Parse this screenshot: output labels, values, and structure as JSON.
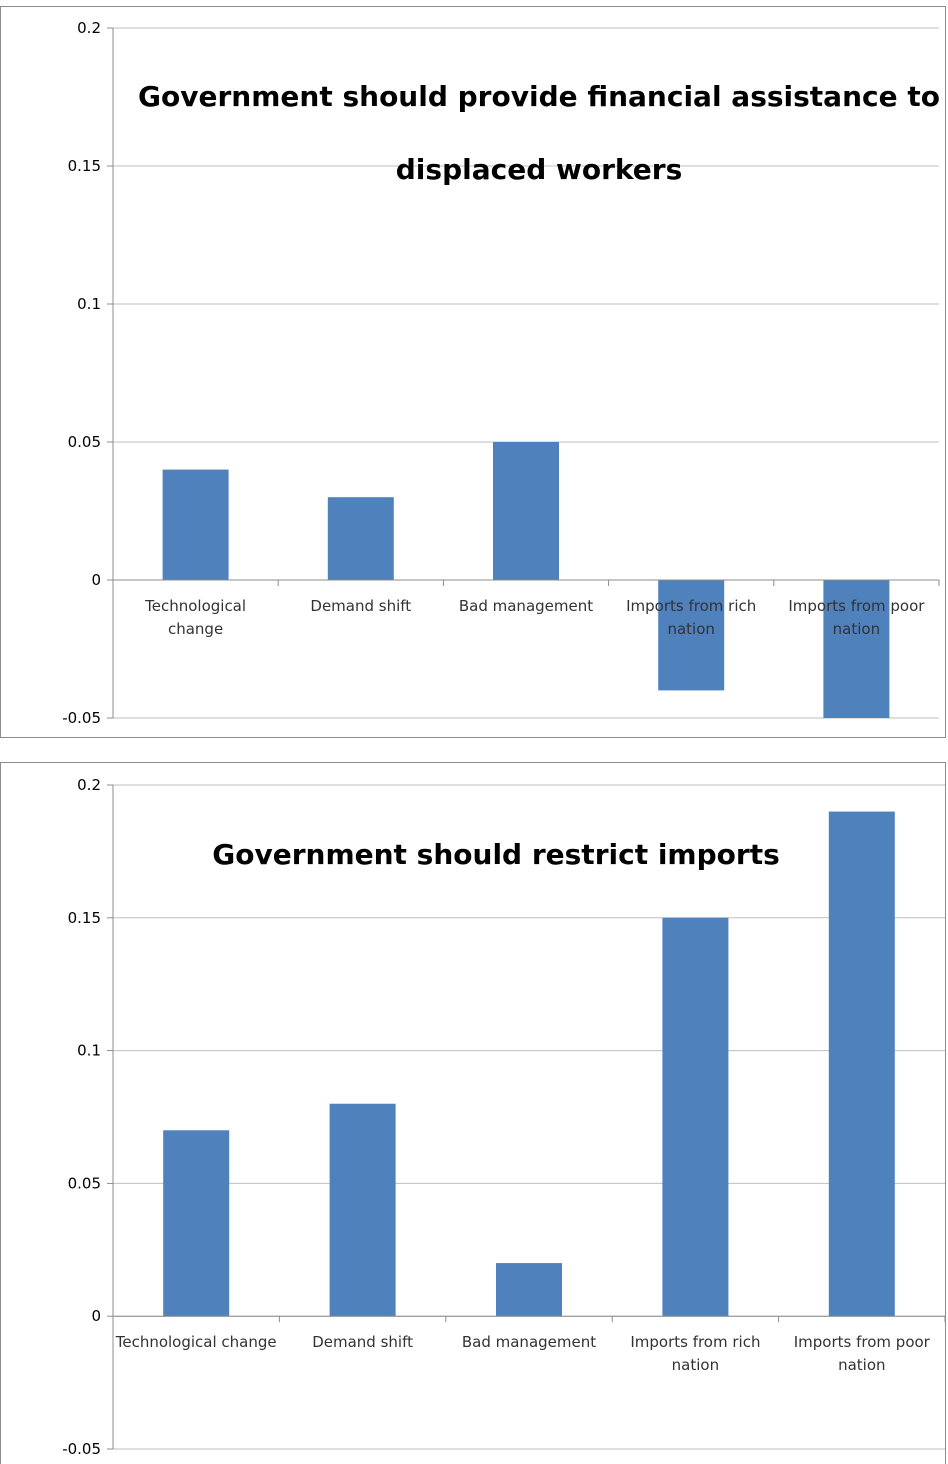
{
  "charts": [
    {
      "title": "Government should provide financial assistance to displaced workers",
      "title_lines": [
        "Government should provide financial assistance to",
        "displaced workers"
      ]
    },
    {
      "title": "Government should restrict imports",
      "title_lines": [
        "Government should restrict imports"
      ]
    }
  ],
  "colors": {
    "bar": "#4f81bd",
    "grid": "#bfbfbf",
    "axis": "#8c8c8c"
  },
  "chart_data": [
    {
      "type": "bar",
      "title": "Government should provide financial assistance to displaced workers",
      "categories": [
        [
          "Technological",
          "change"
        ],
        [
          "Demand shift"
        ],
        [
          "Bad management"
        ],
        [
          "Imports from rich",
          "nation"
        ],
        [
          "Imports from poor",
          "nation"
        ]
      ],
      "values": [
        0.04,
        0.03,
        0.05,
        -0.04,
        -0.05
      ],
      "y_ticks": [
        "0.2",
        "0.15",
        "0.1",
        "0.05",
        "0",
        "-0.05"
      ],
      "ylim": [
        -0.05,
        0.2
      ],
      "grid": true,
      "legend": "none",
      "xlabel": "",
      "ylabel": ""
    },
    {
      "type": "bar",
      "title": "Government should restrict imports",
      "categories": [
        [
          "Technological change"
        ],
        [
          "Demand shift"
        ],
        [
          "Bad management"
        ],
        [
          "Imports from rich",
          "nation"
        ],
        [
          "Imports from poor",
          "nation"
        ]
      ],
      "values": [
        0.07,
        0.08,
        0.02,
        0.15,
        0.19
      ],
      "y_ticks": [
        "0.2",
        "0.15",
        "0.1",
        "0.05",
        "0",
        "-0.05"
      ],
      "ylim": [
        -0.05,
        0.2
      ],
      "grid": true,
      "legend": "none",
      "xlabel": "",
      "ylabel": ""
    }
  ]
}
